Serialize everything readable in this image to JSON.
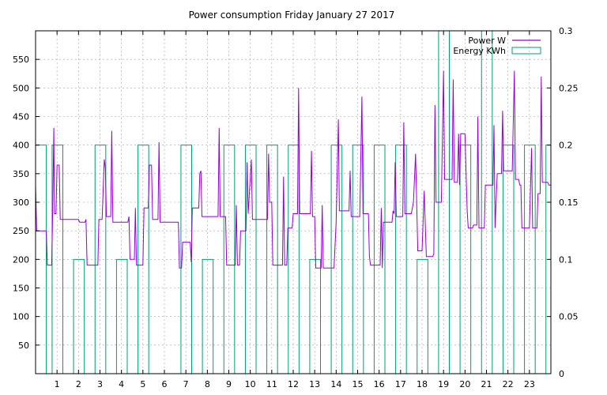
{
  "chart_data": {
    "type": "line",
    "title": "Power consumption Friday January 27 2017",
    "xlabel": "",
    "ylabel": "",
    "y2label": "",
    "xlim": [
      0,
      24
    ],
    "ylim": [
      0,
      600
    ],
    "y2lim": [
      0,
      0.3
    ],
    "x_ticks": [
      1,
      2,
      3,
      4,
      5,
      6,
      7,
      8,
      9,
      10,
      11,
      12,
      13,
      14,
      15,
      16,
      17,
      18,
      19,
      20,
      21,
      22,
      23
    ],
    "y_ticks": [
      50,
      100,
      150,
      200,
      250,
      300,
      350,
      400,
      450,
      500,
      550
    ],
    "y2_ticks": [
      0,
      0.05,
      0.1,
      0.15,
      0.2,
      0.25,
      0.3
    ],
    "y2_tick_labels": [
      "0",
      "0.05",
      "0.1",
      "0.15",
      "0.2",
      "0.25",
      "0.3"
    ],
    "grid": true,
    "legend_position": "top-right",
    "colors": {
      "power": "#9400d3",
      "energy": "#009e73"
    },
    "series": [
      {
        "name": "Power W",
        "axis": "left",
        "style": "line",
        "points": [
          [
            0,
            330
          ],
          [
            0.05,
            250
          ],
          [
            0.5,
            250
          ],
          [
            0.55,
            190
          ],
          [
            0.75,
            190
          ],
          [
            0.8,
            290
          ],
          [
            0.85,
            430
          ],
          [
            0.88,
            280
          ],
          [
            0.95,
            280
          ],
          [
            1.0,
            365
          ],
          [
            1.1,
            365
          ],
          [
            1.15,
            270
          ],
          [
            1.5,
            270
          ],
          [
            2.0,
            270
          ],
          [
            2.05,
            265
          ],
          [
            2.3,
            265
          ],
          [
            2.35,
            270
          ],
          [
            2.4,
            190
          ],
          [
            2.8,
            190
          ],
          [
            2.9,
            190
          ],
          [
            2.95,
            270
          ],
          [
            3.1,
            270
          ],
          [
            3.2,
            375
          ],
          [
            3.25,
            360
          ],
          [
            3.3,
            275
          ],
          [
            3.5,
            275
          ],
          [
            3.55,
            425
          ],
          [
            3.6,
            265
          ],
          [
            4.0,
            265
          ],
          [
            4.3,
            265
          ],
          [
            4.35,
            275
          ],
          [
            4.4,
            200
          ],
          [
            4.6,
            200
          ],
          [
            4.65,
            290
          ],
          [
            4.7,
            190
          ],
          [
            5.0,
            190
          ],
          [
            5.05,
            290
          ],
          [
            5.25,
            290
          ],
          [
            5.3,
            365
          ],
          [
            5.4,
            365
          ],
          [
            5.45,
            270
          ],
          [
            5.7,
            270
          ],
          [
            5.75,
            405
          ],
          [
            5.8,
            265
          ],
          [
            6.2,
            265
          ],
          [
            6.65,
            265
          ],
          [
            6.7,
            185
          ],
          [
            6.8,
            185
          ],
          [
            6.85,
            230
          ],
          [
            7.2,
            230
          ],
          [
            7.25,
            195
          ],
          [
            7.3,
            290
          ],
          [
            7.6,
            290
          ],
          [
            7.65,
            350
          ],
          [
            7.7,
            355
          ],
          [
            7.75,
            275
          ],
          [
            8.1,
            275
          ],
          [
            8.5,
            275
          ],
          [
            8.55,
            430
          ],
          [
            8.6,
            275
          ],
          [
            8.85,
            275
          ],
          [
            8.9,
            190
          ],
          [
            9.3,
            190
          ],
          [
            9.35,
            295
          ],
          [
            9.4,
            190
          ],
          [
            9.5,
            190
          ],
          [
            9.55,
            250
          ],
          [
            9.8,
            250
          ],
          [
            9.85,
            370
          ],
          [
            9.9,
            280
          ],
          [
            10.05,
            375
          ],
          [
            10.1,
            270
          ],
          [
            10.8,
            270
          ],
          [
            10.85,
            385
          ],
          [
            10.9,
            300
          ],
          [
            11.0,
            300
          ],
          [
            11.05,
            190
          ],
          [
            11.5,
            190
          ],
          [
            11.55,
            345
          ],
          [
            11.6,
            190
          ],
          [
            11.7,
            190
          ],
          [
            11.75,
            255
          ],
          [
            11.95,
            255
          ],
          [
            12.0,
            280
          ],
          [
            12.2,
            280
          ],
          [
            12.25,
            500
          ],
          [
            12.3,
            280
          ],
          [
            12.8,
            280
          ],
          [
            12.85,
            390
          ],
          [
            12.9,
            275
          ],
          [
            13.0,
            275
          ],
          [
            13.05,
            185
          ],
          [
            13.3,
            185
          ],
          [
            13.35,
            295
          ],
          [
            13.4,
            185
          ],
          [
            13.9,
            185
          ],
          [
            14.0,
            265
          ],
          [
            14.1,
            445
          ],
          [
            14.15,
            285
          ],
          [
            14.6,
            285
          ],
          [
            14.65,
            355
          ],
          [
            14.7,
            275
          ],
          [
            15.1,
            275
          ],
          [
            15.2,
            485
          ],
          [
            15.25,
            280
          ],
          [
            15.5,
            280
          ],
          [
            15.55,
            205
          ],
          [
            15.6,
            190
          ],
          [
            16.0,
            190
          ],
          [
            16.05,
            190
          ],
          [
            16.1,
            290
          ],
          [
            16.15,
            185
          ],
          [
            16.2,
            265
          ],
          [
            16.6,
            265
          ],
          [
            16.65,
            285
          ],
          [
            16.7,
            280
          ],
          [
            16.75,
            370
          ],
          [
            16.8,
            275
          ],
          [
            17.1,
            275
          ],
          [
            17.15,
            440
          ],
          [
            17.2,
            280
          ],
          [
            17.5,
            280
          ],
          [
            17.6,
            300
          ],
          [
            17.7,
            385
          ],
          [
            17.75,
            300
          ],
          [
            17.8,
            215
          ],
          [
            18.0,
            215
          ],
          [
            18.1,
            320
          ],
          [
            18.2,
            205
          ],
          [
            18.5,
            205
          ],
          [
            18.55,
            210
          ],
          [
            18.6,
            470
          ],
          [
            18.65,
            300
          ],
          [
            18.9,
            300
          ],
          [
            19.0,
            530
          ],
          [
            19.05,
            340
          ],
          [
            19.4,
            340
          ],
          [
            19.45,
            515
          ],
          [
            19.5,
            335
          ],
          [
            19.65,
            335
          ],
          [
            19.7,
            420
          ],
          [
            19.75,
            330
          ],
          [
            19.8,
            420
          ],
          [
            20.0,
            420
          ],
          [
            20.05,
            350
          ],
          [
            20.1,
            285
          ],
          [
            20.15,
            255
          ],
          [
            20.35,
            255
          ],
          [
            20.4,
            260
          ],
          [
            20.55,
            260
          ],
          [
            20.6,
            450
          ],
          [
            20.65,
            255
          ],
          [
            20.9,
            255
          ],
          [
            20.95,
            330
          ],
          [
            21.3,
            330
          ],
          [
            21.35,
            435
          ],
          [
            21.4,
            255
          ],
          [
            21.5,
            350
          ],
          [
            21.7,
            350
          ],
          [
            21.75,
            460
          ],
          [
            21.8,
            355
          ],
          [
            22.2,
            355
          ],
          [
            22.3,
            530
          ],
          [
            22.35,
            340
          ],
          [
            22.5,
            340
          ],
          [
            22.55,
            330
          ],
          [
            22.6,
            330
          ],
          [
            22.65,
            255
          ],
          [
            23.0,
            255
          ],
          [
            23.1,
            395
          ],
          [
            23.15,
            255
          ],
          [
            23.35,
            255
          ],
          [
            23.4,
            315
          ],
          [
            23.5,
            315
          ],
          [
            23.55,
            520
          ],
          [
            23.6,
            335
          ],
          [
            23.85,
            335
          ],
          [
            23.9,
            330
          ],
          [
            24.0,
            330
          ]
        ]
      },
      {
        "name": "Energy KWh",
        "axis": "right",
        "style": "steps",
        "bins": [
          [
            0,
            0.5,
            0.2
          ],
          [
            0.5,
            0.77,
            0
          ],
          [
            0.77,
            1.27,
            0.2
          ],
          [
            1.27,
            1.77,
            0
          ],
          [
            1.77,
            2.27,
            0.1
          ],
          [
            2.27,
            2.77,
            0
          ],
          [
            2.77,
            3.27,
            0.2
          ],
          [
            3.27,
            3.77,
            0
          ],
          [
            3.77,
            4.27,
            0.1
          ],
          [
            4.27,
            4.77,
            0
          ],
          [
            4.77,
            5.27,
            0.2
          ],
          [
            5.27,
            6.77,
            0
          ],
          [
            6.77,
            7.27,
            0.2
          ],
          [
            7.27,
            7.77,
            0
          ],
          [
            7.77,
            8.27,
            0.1
          ],
          [
            8.27,
            8.77,
            0
          ],
          [
            8.77,
            9.27,
            0.2
          ],
          [
            9.27,
            9.77,
            0
          ],
          [
            9.77,
            10.27,
            0.2
          ],
          [
            10.27,
            10.77,
            0
          ],
          [
            10.77,
            11.27,
            0.2
          ],
          [
            11.27,
            11.77,
            0
          ],
          [
            11.77,
            12.27,
            0.2
          ],
          [
            12.27,
            12.77,
            0
          ],
          [
            12.77,
            13.27,
            0.1
          ],
          [
            13.27,
            13.77,
            0
          ],
          [
            13.77,
            14.27,
            0.2
          ],
          [
            14.27,
            14.77,
            0
          ],
          [
            14.77,
            15.27,
            0.2
          ],
          [
            15.27,
            15.77,
            0
          ],
          [
            15.77,
            16.27,
            0.2
          ],
          [
            16.27,
            16.77,
            0
          ],
          [
            16.77,
            17.27,
            0.2
          ],
          [
            17.27,
            17.77,
            0
          ],
          [
            17.77,
            18.27,
            0.1
          ],
          [
            18.27,
            18.77,
            0
          ],
          [
            18.77,
            19.27,
            0.3
          ],
          [
            19.27,
            19.77,
            0
          ],
          [
            19.77,
            20.27,
            0.2
          ],
          [
            20.27,
            20.77,
            0
          ],
          [
            20.77,
            21.27,
            0.3
          ],
          [
            21.27,
            21.77,
            0
          ],
          [
            21.77,
            22.27,
            0.2
          ],
          [
            22.27,
            22.77,
            0
          ],
          [
            22.77,
            23.27,
            0.2
          ],
          [
            23.27,
            23.77,
            0
          ],
          [
            23.77,
            24,
            0.2
          ]
        ]
      }
    ]
  }
}
